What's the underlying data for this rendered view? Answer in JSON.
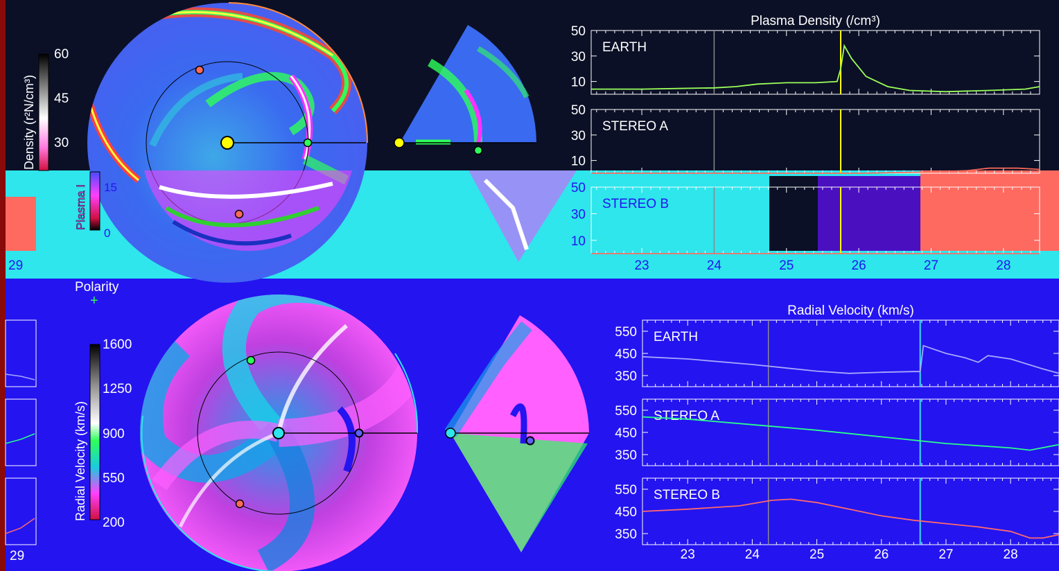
{
  "colors": {
    "top_bg": "#0b1026",
    "mid_band": "#2ee6ec",
    "bottom_bg": "#2414f0",
    "left_edge": "#8a0a0a",
    "earth": "#9cff5a",
    "stereo_a_top": "#ff6a5a",
    "stereo_b_band": "#ff6a60",
    "vel_earth": "#a8a8ff",
    "vel_stereo_a": "#2aff8a",
    "vel_stereo_b": "#ff6a6a",
    "cme_marker_top": "#ffff00",
    "cme_marker_bottom": "#2ee6ec",
    "reference_marker": "#8a8a8a"
  },
  "top_panel": {
    "colorbar": {
      "label": "Density (r²N/cm³)",
      "ticks": [
        "60",
        "45",
        "30"
      ]
    },
    "legend_fragment": {
      "label": "Plasma I",
      "ticks": [
        "15",
        "0"
      ]
    },
    "left_strip_tick": "29"
  },
  "bottom_panel": {
    "polarity_label": "Polarity",
    "polarity_symbol": "+",
    "colorbar": {
      "label": "Radial Velocity (km/s)",
      "ticks": [
        "1600",
        "1250",
        "900",
        "550",
        "200"
      ]
    },
    "left_strip_tick": "29"
  },
  "chart_data": [
    {
      "type": "line",
      "title": "Plasma Density (/cm³)",
      "xlabel": "",
      "x_ticks": [
        "23",
        "24",
        "25",
        "26",
        "27",
        "28"
      ],
      "xlim": [
        22.3,
        28.5
      ],
      "panels": [
        {
          "name": "EARTH",
          "ylim": [
            0,
            50
          ],
          "yticks": [
            "50",
            "30",
            "10"
          ],
          "x": [
            22.3,
            23,
            23.5,
            24,
            24.3,
            24.6,
            25,
            25.4,
            25.7,
            25.75,
            25.8,
            25.9,
            26.1,
            26.4,
            26.7,
            27.2,
            27.8,
            28.3,
            28.5
          ],
          "values": [
            4,
            4,
            4.5,
            5,
            6,
            8,
            9,
            9,
            10,
            20,
            38,
            28,
            14,
            6,
            3,
            2,
            3,
            4,
            6
          ]
        },
        {
          "name": "STEREO A",
          "ylim": [
            0,
            50
          ],
          "yticks": [
            "50",
            "30",
            "10"
          ],
          "x": [
            22.3,
            24,
            26,
            27,
            27.5,
            27.8,
            28.2,
            28.5
          ],
          "values": [
            0,
            0,
            0,
            1,
            2,
            4,
            4,
            3
          ]
        },
        {
          "name": "STEREO B",
          "ylim": [
            0,
            50
          ],
          "yticks": [
            "50",
            "30",
            "10"
          ],
          "x": [
            22.3,
            24,
            26,
            28.5
          ],
          "values": [
            0,
            0,
            0,
            0
          ]
        }
      ],
      "vertical_markers": [
        {
          "x": 24.0,
          "color": "#8a8a8a"
        },
        {
          "x": 25.75,
          "color": "#ffff00"
        }
      ]
    },
    {
      "type": "line",
      "title": "Radial Velocity (km/s)",
      "xlabel": "",
      "x_ticks": [
        "23",
        "24",
        "25",
        "26",
        "27",
        "28"
      ],
      "xlim": [
        22.3,
        28.75
      ],
      "panels": [
        {
          "name": "EARTH",
          "ylim": [
            300,
            600
          ],
          "yticks": [
            "550",
            "450",
            "350"
          ],
          "x": [
            22.3,
            23,
            24,
            24.5,
            25,
            25.5,
            26,
            26.5,
            26.6,
            26.65,
            27,
            27.3,
            27.5,
            27.65,
            28,
            28.5,
            28.75
          ],
          "values": [
            435,
            425,
            400,
            385,
            370,
            360,
            365,
            368,
            368,
            485,
            450,
            430,
            410,
            440,
            425,
            380,
            360
          ]
        },
        {
          "name": "STEREO A",
          "ylim": [
            300,
            600
          ],
          "yticks": [
            "550",
            "450",
            "350"
          ],
          "x": [
            22.3,
            23,
            24,
            25,
            26,
            27,
            27.5,
            28,
            28.3,
            28.75
          ],
          "values": [
            520,
            510,
            485,
            460,
            430,
            400,
            390,
            380,
            370,
            395
          ]
        },
        {
          "name": "STEREO B",
          "ylim": [
            300,
            600
          ],
          "yticks": [
            "550",
            "450",
            "350"
          ],
          "x": [
            22.3,
            23,
            23.8,
            24.3,
            24.6,
            25,
            25.5,
            26,
            26.5,
            27,
            27.5,
            28,
            28.3,
            28.5,
            28.75
          ],
          "values": [
            450,
            460,
            475,
            500,
            505,
            490,
            460,
            430,
            410,
            395,
            380,
            360,
            330,
            330,
            345
          ]
        }
      ],
      "vertical_markers": [
        {
          "x": 24.25,
          "color": "#8a8a8a"
        },
        {
          "x": 26.6,
          "color": "#2ee6ec"
        }
      ]
    }
  ]
}
